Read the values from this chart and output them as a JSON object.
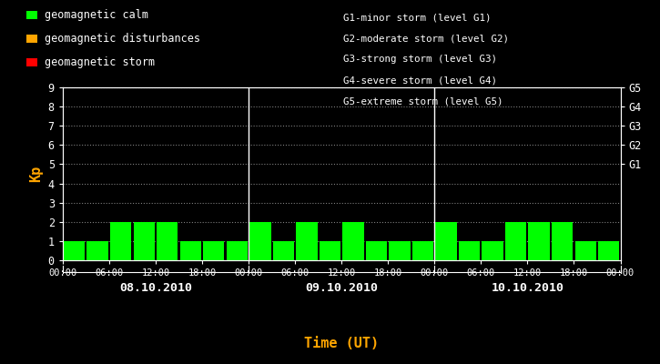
{
  "background_color": "#000000",
  "plot_bg_color": "#000000",
  "bar_color_calm": "#00ff00",
  "bar_color_disturbance": "#ffa500",
  "bar_color_storm": "#ff0000",
  "text_color": "#ffffff",
  "orange_color": "#ffa500",
  "grid_color": "#ffffff",
  "kp_values": [
    1,
    1,
    2,
    2,
    2,
    1,
    1,
    1,
    2,
    1,
    2,
    1,
    2,
    1,
    1,
    1,
    2,
    1,
    1,
    2,
    2,
    2,
    1,
    1
  ],
  "ylim": [
    0,
    9
  ],
  "yticks": [
    0,
    1,
    2,
    3,
    4,
    5,
    6,
    7,
    8,
    9
  ],
  "right_labels": [
    "G5",
    "G4",
    "G3",
    "G2",
    "G1"
  ],
  "right_label_yvals": [
    9,
    8,
    7,
    6,
    5
  ],
  "legend_items": [
    {
      "label": "geomagnetic calm",
      "color": "#00ff00"
    },
    {
      "label": "geomagnetic disturbances",
      "color": "#ffa500"
    },
    {
      "label": "geomagnetic storm",
      "color": "#ff0000"
    }
  ],
  "storm_legend_lines": [
    "G1-minor storm (level G1)",
    "G2-moderate storm (level G2)",
    "G3-strong storm (level G3)",
    "G4-severe storm (level G4)",
    "G5-extreme storm (level G5)"
  ],
  "day_labels": [
    "08.10.2010",
    "09.10.2010",
    "10.10.2010"
  ],
  "xlabel": "Time (UT)",
  "ylabel": "Kp",
  "time_tick_labels": [
    "00:00",
    "06:00",
    "12:00",
    "18:00",
    "00:00",
    "06:00",
    "12:00",
    "18:00",
    "00:00",
    "06:00",
    "12:00",
    "18:00",
    "00:00"
  ]
}
